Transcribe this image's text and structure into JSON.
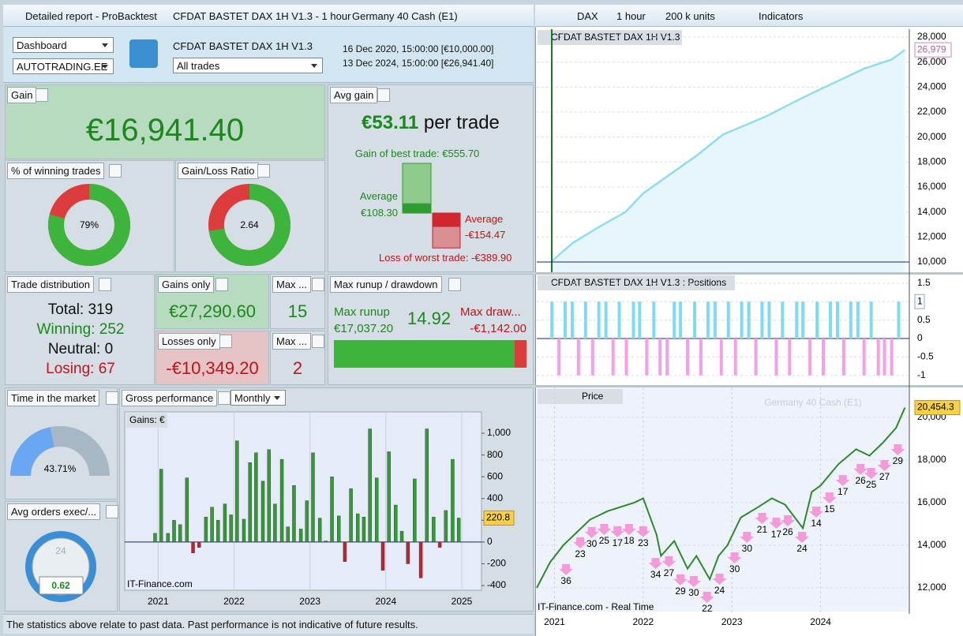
{
  "left_window": {
    "tabs": [
      "Detailed report - ProBacktest",
      "CFDAT BASTET DAX 1H V1.3 - 1 hour",
      "Germany 40 Cash (E1)"
    ]
  },
  "right_window": {
    "tabs": [
      "DAX",
      "1 hour",
      "200 k units",
      "Indicators"
    ]
  },
  "toolbar": {
    "view": "Dashboard",
    "account": "AUTOTRADING.EE",
    "system": "CFDAT BASTET DAX 1H V1.3",
    "filter": "All trades",
    "start": "16 Dec 2020, 15:00:00 [€10,000.00]",
    "end": "13 Dec 2024, 15:00:00 [€26,941.40]"
  },
  "gain": {
    "label": "Gain",
    "value": "€16,941.40"
  },
  "avg_gain": {
    "label": "Avg gain",
    "value": "€53.11",
    "unit": "per trade",
    "best": {
      "value": 555.7,
      "label": "Gain of best trade: €555.70"
    },
    "avg_win": {
      "value": 108.3,
      "label": "€108.30",
      "caption": "Average"
    },
    "avg_loss": {
      "value": -154.47,
      "label": "-€154.47",
      "caption": "Average"
    },
    "worst": {
      "value": -389.9,
      "label": "Loss of worst trade: -€389.90"
    }
  },
  "win_rate": {
    "label": "% of winning trades",
    "value": 79,
    "value_label": "79%"
  },
  "ratio": {
    "label": "Gain/Loss Ratio",
    "value": 2.64
  },
  "distribution": {
    "label": "Trade distribution",
    "lines": [
      "Total: 319",
      "Winning: 252",
      "Neutral: 0",
      "Losing: 67"
    ]
  },
  "gains_only": {
    "label": "Gains only",
    "value": "€27,290.60"
  },
  "losses_only": {
    "label": "Losses only",
    "value": "-€10,349.20"
  },
  "max_wins": {
    "label": "Max ...",
    "value": 15
  },
  "max_losses": {
    "label": "Max ...",
    "value": 2
  },
  "runup": {
    "label": "Max runup / drawdown",
    "runup_caption": "Max runup",
    "runup": {
      "value": 17037.2,
      "label": "€17,037.20"
    },
    "ratio": 14.92,
    "drawdown_caption": "Max draw...",
    "drawdown": {
      "value": -1142,
      "label": "-€1,142.00"
    }
  },
  "time_in_market": {
    "label": "Time in the market",
    "value": 43.71,
    "value_label": "43.71%"
  },
  "avg_orders": {
    "label": "Avg orders exec/...",
    "clock": "24",
    "value": 0.62
  },
  "gross": {
    "label": "Gross performance",
    "period": "Monthly",
    "chart_data": {
      "type": "bar",
      "legend": "Gains: €",
      "source": "IT-Finance.com",
      "x": [
        2020.96,
        2021.04,
        2021.13,
        2021.21,
        2021.29,
        2021.38,
        2021.46,
        2021.54,
        2021.63,
        2021.71,
        2021.79,
        2021.88,
        2021.96,
        2022.04,
        2022.13,
        2022.21,
        2022.29,
        2022.38,
        2022.46,
        2022.54,
        2022.63,
        2022.71,
        2022.79,
        2022.88,
        2022.96,
        2023.04,
        2023.13,
        2023.21,
        2023.29,
        2023.38,
        2023.46,
        2023.54,
        2023.63,
        2023.71,
        2023.79,
        2023.88,
        2023.96,
        2024.04,
        2024.13,
        2024.21,
        2024.29,
        2024.38,
        2024.46,
        2024.54,
        2024.63,
        2024.71,
        2024.79,
        2024.88,
        2024.96
      ],
      "values": [
        80,
        670,
        80,
        200,
        160,
        590,
        -100,
        -50,
        230,
        320,
        200,
        350,
        250,
        930,
        210,
        730,
        820,
        560,
        850,
        350,
        760,
        140,
        520,
        120,
        380,
        820,
        220,
        10,
        600,
        240,
        -180,
        490,
        260,
        230,
        1040,
        590,
        -260,
        830,
        340,
        100,
        -200,
        580,
        -330,
        1040,
        230,
        -50,
        290,
        760,
        220.8
      ],
      "pos_color": "#2e9e2e",
      "neg_color": "#c8202a",
      "xlim": [
        2020.56,
        2025.26
      ],
      "xticks": [
        2021,
        2022,
        2023,
        2024,
        2025
      ],
      "ylim": [
        -443,
        1196
      ],
      "yticks": [
        {
          "value": 1000,
          "label": "1,000"
        },
        800,
        600,
        400,
        200,
        0,
        -200,
        -400
      ]
    }
  },
  "equity": {
    "chart_data": {
      "type": "line",
      "legend": "CFDAT BASTET DAX 1H V1.3",
      "color": "#8fdcf0",
      "x": [
        2020.96,
        2021.2,
        2021.5,
        2021.8,
        2022.0,
        2022.3,
        2022.6,
        2022.9,
        2023.1,
        2023.4,
        2023.7,
        2023.9,
        2024.2,
        2024.5,
        2024.8,
        2024.95
      ],
      "values": [
        10000,
        11500,
        12800,
        14000,
        15500,
        17000,
        18500,
        20200,
        20800,
        21700,
        22800,
        23500,
        24500,
        25500,
        26200,
        26979
      ],
      "last_label": "26,979",
      "ylim": [
        9180,
        28630
      ],
      "yticks": [
        {
          "value": 28000,
          "label": "28,000"
        },
        {
          "value": 26000,
          "label": "26,000"
        },
        {
          "value": 24000,
          "label": "24,000"
        },
        {
          "value": 22000,
          "label": "22,000"
        },
        {
          "value": 20000,
          "label": "20,000"
        },
        {
          "value": 18000,
          "label": "18,000"
        },
        {
          "value": 16000,
          "label": "16,000"
        },
        {
          "value": 14000,
          "label": "14,000"
        },
        {
          "value": 12000,
          "label": "12,000"
        },
        {
          "value": 10000,
          "label": "10,000"
        }
      ]
    }
  },
  "positions": {
    "chart_data": {
      "type": "bar",
      "legend": "CFDAT BASTET DAX 1H V1.3 : Positions",
      "long_color": "#7fdcf0",
      "short_color": "#f5a0e6",
      "x": [
        2020.97,
        2021.05,
        2021.12,
        2021.2,
        2021.27,
        2021.35,
        2021.43,
        2021.5,
        2021.58,
        2021.66,
        2021.73,
        2021.81,
        2021.89,
        2021.96,
        2022.04,
        2022.12,
        2022.19,
        2022.27,
        2022.35,
        2022.42,
        2022.5,
        2022.58,
        2022.65,
        2022.73,
        2022.81,
        2022.88,
        2022.96,
        2023.04,
        2023.11,
        2023.19,
        2023.27,
        2023.34,
        2023.42,
        2023.5,
        2023.57,
        2023.65,
        2023.73,
        2023.8,
        2023.88,
        2023.96,
        2024.03,
        2024.11,
        2024.19,
        2024.26,
        2024.34,
        2024.42,
        2024.49,
        2024.57,
        2024.65,
        2024.72,
        2024.8,
        2024.88
      ],
      "values": [
        1,
        -1,
        1,
        1,
        -1,
        1,
        -1,
        1,
        1,
        -1,
        1,
        -1,
        1,
        1,
        -1,
        1,
        -1,
        -1,
        1,
        1,
        -1,
        1,
        -1,
        1,
        1,
        -1,
        1,
        -1,
        1,
        1,
        -1,
        1,
        1,
        -1,
        1,
        -1,
        1,
        1,
        -1,
        1,
        -1,
        1,
        1,
        -1,
        1,
        1,
        -1,
        1,
        -1,
        -1,
        -1,
        1
      ],
      "ylim": [
        -1.26,
        1.71
      ],
      "yticks": [
        1.5,
        1,
        0.5,
        0,
        -0.5,
        -1
      ]
    }
  },
  "price": {
    "chart_data": {
      "type": "line",
      "legend": "Price",
      "title": "Germany 40 Cash (E1)",
      "source": "IT-Finance.com - Real Time",
      "color": "#2c8a2c",
      "x": [
        2020.8,
        2020.95,
        2021.1,
        2021.25,
        2021.4,
        2021.6,
        2021.9,
        2022.0,
        2022.15,
        2022.2,
        2022.35,
        2022.5,
        2022.6,
        2022.75,
        2022.85,
        2022.95,
        2023.1,
        2023.3,
        2023.45,
        2023.6,
        2023.8,
        2023.9,
        2024.0,
        2024.2,
        2024.4,
        2024.55,
        2024.7,
        2024.85,
        2024.95
      ],
      "values": [
        12000,
        13200,
        14000,
        14600,
        15200,
        15600,
        16000,
        16200,
        14500,
        13500,
        14200,
        12900,
        13500,
        12400,
        13500,
        14000,
        15300,
        15800,
        16200,
        15900,
        14800,
        16500,
        16800,
        17800,
        18500,
        18200,
        18800,
        19500,
        20454.3
      ],
      "last_label": "20,454.3",
      "xlim": [
        2020.8,
        2025.0
      ],
      "xticks": [
        2021,
        2022,
        2023,
        2024
      ],
      "ylim": [
        10890,
        21400
      ],
      "yticks": [
        {
          "value": 20000,
          "label": "20,000"
        },
        {
          "value": 18000,
          "label": "18,000"
        },
        {
          "value": 16000,
          "label": "16,000"
        },
        {
          "value": 14000,
          "label": "14,000"
        },
        {
          "value": 12000,
          "label": "12,000"
        }
      ],
      "annotations": [
        {
          "text": "36",
          "x": 2021.13,
          "y": 12300
        },
        {
          "text": "23",
          "x": 2021.29,
          "y": 13560
        },
        {
          "text": "30",
          "x": 2021.42,
          "y": 14040
        },
        {
          "text": "25",
          "x": 2021.56,
          "y": 14185
        },
        {
          "text": "17",
          "x": 2021.71,
          "y": 14075
        },
        {
          "text": "18",
          "x": 2021.84,
          "y": 14185
        },
        {
          "text": "23",
          "x": 2022.0,
          "y": 14075
        },
        {
          "text": "34",
          "x": 2022.14,
          "y": 12590
        },
        {
          "text": "27",
          "x": 2022.29,
          "y": 12670
        },
        {
          "text": "29",
          "x": 2022.42,
          "y": 11820
        },
        {
          "text": "30",
          "x": 2022.57,
          "y": 11740
        },
        {
          "text": "22",
          "x": 2022.72,
          "y": 11000
        },
        {
          "text": "24",
          "x": 2022.86,
          "y": 11850
        },
        {
          "text": "30",
          "x": 2023.03,
          "y": 12850
        },
        {
          "text": "30",
          "x": 2023.17,
          "y": 13815
        },
        {
          "text": "21",
          "x": 2023.34,
          "y": 14700
        },
        {
          "text": "17",
          "x": 2023.5,
          "y": 14480
        },
        {
          "text": "26",
          "x": 2023.63,
          "y": 14590
        },
        {
          "text": "24",
          "x": 2023.79,
          "y": 13815
        },
        {
          "text": "14",
          "x": 2023.95,
          "y": 15000
        },
        {
          "text": "15",
          "x": 2024.1,
          "y": 15665
        },
        {
          "text": "17",
          "x": 2024.25,
          "y": 16480
        },
        {
          "text": "26",
          "x": 2024.45,
          "y": 17000
        },
        {
          "text": "25",
          "x": 2024.57,
          "y": 16810
        },
        {
          "text": "27",
          "x": 2024.72,
          "y": 17180
        },
        {
          "text": "29",
          "x": 2024.87,
          "y": 17920
        }
      ]
    }
  },
  "footer": "The statistics above relate to past data. Past performance is not indicative of future results."
}
